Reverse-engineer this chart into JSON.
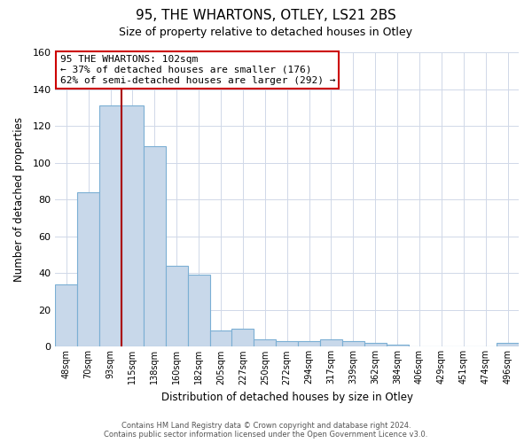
{
  "title": "95, THE WHARTONS, OTLEY, LS21 2BS",
  "subtitle": "Size of property relative to detached houses in Otley",
  "xlabel": "Distribution of detached houses by size in Otley",
  "ylabel": "Number of detached properties",
  "bar_labels": [
    "48sqm",
    "70sqm",
    "93sqm",
    "115sqm",
    "138sqm",
    "160sqm",
    "182sqm",
    "205sqm",
    "227sqm",
    "250sqm",
    "272sqm",
    "294sqm",
    "317sqm",
    "339sqm",
    "362sqm",
    "384sqm",
    "406sqm",
    "429sqm",
    "451sqm",
    "474sqm",
    "496sqm"
  ],
  "bar_values": [
    34,
    84,
    131,
    131,
    109,
    44,
    39,
    9,
    10,
    4,
    3,
    3,
    4,
    3,
    2,
    1,
    0,
    0,
    0,
    0,
    2
  ],
  "bar_color": "#c8d8ea",
  "bar_edge_color": "#7bafd4",
  "vline_color": "#aa0000",
  "annotation_text": "95 THE WHARTONS: 102sqm\n← 37% of detached houses are smaller (176)\n62% of semi-detached houses are larger (292) →",
  "annotation_box_color": "#ffffff",
  "annotation_box_edge_color": "#cc0000",
  "ylim": [
    0,
    160
  ],
  "yticks": [
    0,
    20,
    40,
    60,
    80,
    100,
    120,
    140,
    160
  ],
  "footer_line1": "Contains HM Land Registry data © Crown copyright and database right 2024.",
  "footer_line2": "Contains public sector information licensed under the Open Government Licence v3.0.",
  "bg_color": "#ffffff",
  "grid_color": "#d0d8e8"
}
